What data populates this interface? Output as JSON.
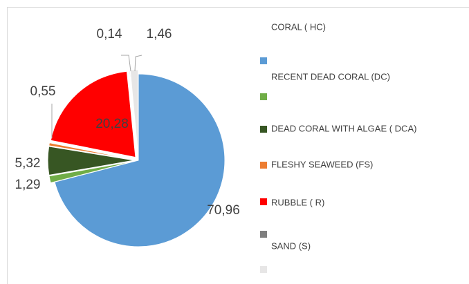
{
  "chart_data": {
    "type": "pie",
    "categories": [
      "CORAL ( HC)",
      "RECENT DEAD CORAL (DC)",
      "DEAD CORAL WITH ALGAE ( DCA)",
      "FLESHY SEAWEED (FS)",
      "RUBBLE ( R)",
      "SAND (S)",
      null
    ],
    "values": [
      70.96,
      1.29,
      5.32,
      0.55,
      20.28,
      0.14,
      1.46
    ],
    "value_labels": [
      "70,96",
      "1,29",
      "5,32",
      "0,55",
      "20,28",
      "0,14",
      "1,46"
    ],
    "colors": [
      "#5b9bd5",
      "#70ad47",
      "#375623",
      "#ed7d31",
      "#ff0000",
      "#7f7f7f",
      "#e7e6e6"
    ],
    "legend": "right"
  }
}
